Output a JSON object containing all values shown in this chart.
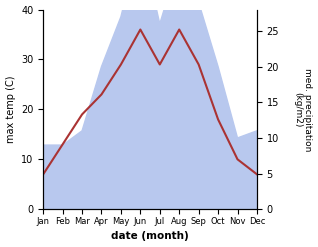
{
  "months": [
    "Jan",
    "Feb",
    "Mar",
    "Apr",
    "May",
    "Jun",
    "Jul",
    "Aug",
    "Sep",
    "Oct",
    "Nov",
    "Dec"
  ],
  "temperature": [
    7,
    13,
    19,
    23,
    29,
    36,
    29,
    36,
    29,
    18,
    10,
    7
  ],
  "precipitation": [
    9,
    9,
    11,
    20,
    27,
    38,
    26,
    35,
    29,
    20,
    10,
    11
  ],
  "temp_color": "#aa3333",
  "precip_color": "#b8c8ee",
  "ylabel_left": "max temp (C)",
  "ylabel_right": "med. precipitation\n(kg/m2)",
  "xlabel": "date (month)",
  "ylim_left": [
    0,
    40
  ],
  "ylim_right": [
    0,
    28
  ],
  "right_axis_ticks": [
    0,
    5,
    10,
    15,
    20,
    25
  ],
  "left_axis_ticks": [
    0,
    10,
    20,
    30,
    40
  ],
  "bg_color": "#ffffff"
}
